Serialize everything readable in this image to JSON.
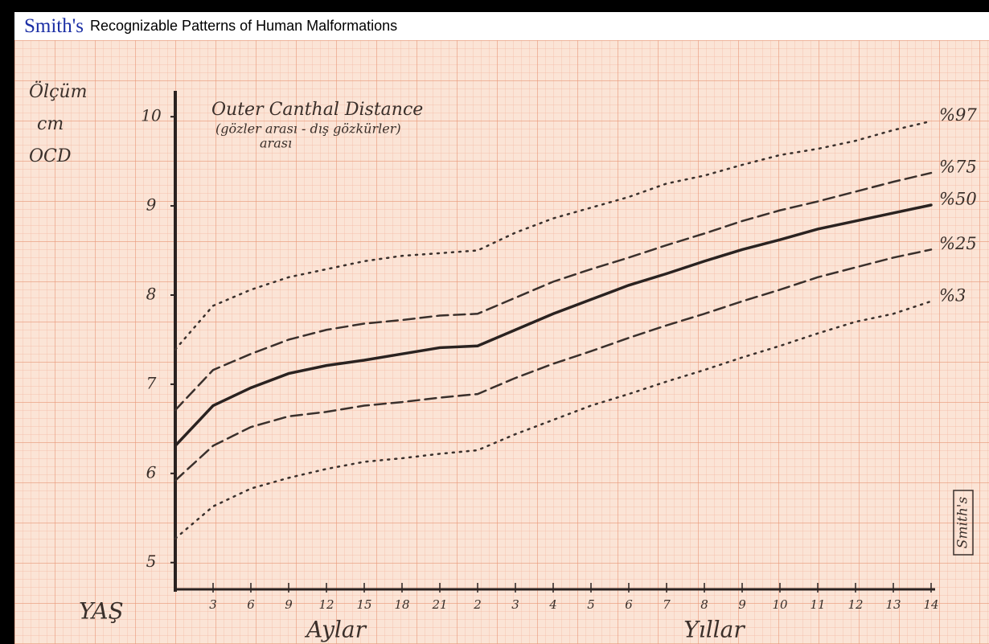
{
  "header": {
    "brand": "Smith's",
    "book": "Recognizable Patterns of Human Malformations"
  },
  "chart_data": {
    "type": "line",
    "title": "Outer Canthal Distance",
    "subtitle": [
      "(gözler arası - dış gözkürler)",
      "arası"
    ],
    "y_label": [
      "Ölçüm",
      "cm",
      "OCD"
    ],
    "x_label": "YAŞ",
    "x_groups": [
      "Aylar",
      "Yıllar"
    ],
    "stamp": "Smith's",
    "categories": [
      null,
      "3",
      "6",
      "9",
      "12",
      "15",
      "18",
      "21",
      "2",
      "3",
      "4",
      "5",
      "6",
      "7",
      "8",
      "9",
      "10",
      "11",
      "12",
      "13",
      "14"
    ],
    "ylim": [
      4.7,
      10.2
    ],
    "yticks": [
      5,
      6,
      7,
      8,
      9,
      10
    ],
    "series": [
      {
        "name": "%97",
        "color": "#3a302c",
        "style": "dotted",
        "values": [
          7.39,
          7.88,
          8.06,
          8.2,
          8.29,
          8.38,
          8.44,
          8.47,
          8.5,
          8.7,
          8.86,
          8.98,
          9.1,
          9.25,
          9.34,
          9.46,
          9.57,
          9.64,
          9.73,
          9.85,
          9.95
        ]
      },
      {
        "name": "%75",
        "color": "#3a302c",
        "style": "dashed",
        "values": [
          6.71,
          7.16,
          7.34,
          7.5,
          7.61,
          7.68,
          7.72,
          7.77,
          7.79,
          7.97,
          8.15,
          8.29,
          8.42,
          8.56,
          8.69,
          8.83,
          8.95,
          9.05,
          9.16,
          9.27,
          9.37
        ]
      },
      {
        "name": "%50",
        "color": "#2a2220",
        "style": "solid",
        "values": [
          6.31,
          6.76,
          6.96,
          7.12,
          7.21,
          7.27,
          7.34,
          7.41,
          7.43,
          7.61,
          7.79,
          7.95,
          8.11,
          8.24,
          8.38,
          8.51,
          8.62,
          8.74,
          8.83,
          8.92,
          9.01
        ]
      },
      {
        "name": "%25",
        "color": "#3a302c",
        "style": "dashed",
        "values": [
          5.92,
          6.31,
          6.52,
          6.64,
          6.69,
          6.76,
          6.8,
          6.85,
          6.89,
          7.07,
          7.23,
          7.37,
          7.52,
          7.66,
          7.79,
          7.93,
          8.06,
          8.2,
          8.31,
          8.42,
          8.51
        ]
      },
      {
        "name": "%3",
        "color": "#3a302c",
        "style": "dotted",
        "values": [
          5.27,
          5.63,
          5.83,
          5.95,
          6.05,
          6.13,
          6.17,
          6.22,
          6.26,
          6.44,
          6.6,
          6.76,
          6.89,
          7.03,
          7.16,
          7.3,
          7.43,
          7.57,
          7.7,
          7.79,
          7.93
        ]
      }
    ]
  }
}
